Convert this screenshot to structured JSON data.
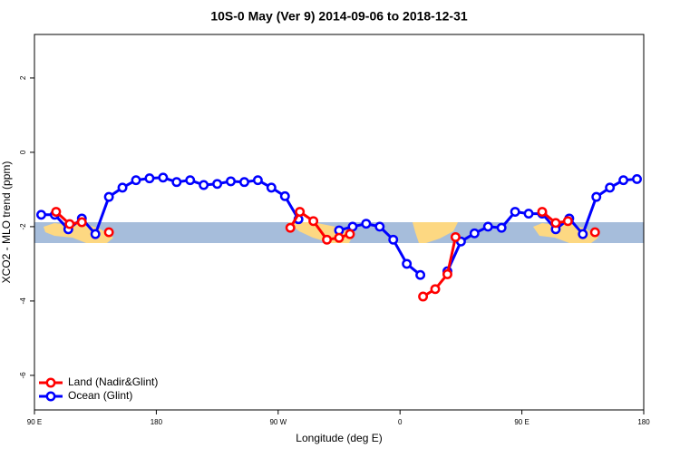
{
  "chart_data": {
    "type": "line",
    "title": "10S-0 May (Ver 9)   2014-09-06 to 2018-12-31",
    "xlabel": "Longitude (deg E)",
    "ylabel": "XCO2 - MLO trend (ppm)",
    "xlim": [
      90,
      540
    ],
    "ylim": [
      -6.93,
      3.17
    ],
    "xticks": [
      {
        "value": 90,
        "label": "90 E"
      },
      180,
      {
        "value": 270,
        "label": "90 W"
      },
      {
        "value": 360,
        "label": "0"
      },
      {
        "value": 450,
        "label": "90 E"
      },
      {
        "value": 540,
        "label": "180"
      }
    ],
    "yticks": [
      2,
      0,
      -2,
      -4,
      -6
    ],
    "legend": "bottom-left",
    "series": [
      {
        "name": "Land (Nadir&Glint)",
        "color": "#ff0000",
        "x": [
          106,
          116,
          125,
          null,
          145,
          null,
          279,
          286,
          296,
          306,
          315,
          323,
          null,
          377,
          386,
          395,
          401,
          null,
          465,
          475,
          484,
          null,
          504
        ],
        "values": [
          -1.6,
          -1.93,
          -1.88,
          null,
          -2.15,
          null,
          -2.03,
          -1.6,
          -1.85,
          -2.35,
          -2.3,
          -2.2,
          null,
          -3.88,
          -3.68,
          -3.28,
          -2.28,
          null,
          -1.6,
          -1.9,
          -1.85,
          null,
          -2.15
        ]
      },
      {
        "name": "Ocean (Glint)",
        "color": "#0000ff",
        "x": [
          95,
          105,
          115,
          125,
          135,
          145,
          155,
          165,
          175,
          185,
          195,
          205,
          215,
          225,
          235,
          245,
          255,
          265,
          275,
          285,
          295,
          305,
          315,
          325,
          335,
          345,
          355,
          365,
          375,
          385,
          395,
          405,
          415,
          425,
          435,
          445,
          455,
          465,
          475,
          485,
          495,
          505,
          515,
          525,
          535
        ],
        "values": [
          -1.68,
          -1.68,
          -2.07,
          -1.78,
          -2.2,
          -1.2,
          -0.95,
          -0.75,
          -0.7,
          -0.68,
          -0.8,
          -0.75,
          -0.88,
          -0.85,
          -0.78,
          -0.8,
          -0.75,
          -0.95,
          -1.18,
          -1.8,
          null,
          null,
          -2.1,
          -2.0,
          -1.92,
          -2.0,
          -2.35,
          -3.0,
          -3.3,
          null,
          -3.2,
          -2.4,
          -2.18,
          -2.0,
          -2.03,
          -1.6,
          -1.65,
          -1.65,
          -2.07,
          -1.78,
          -2.2,
          -1.2,
          -0.95,
          -0.75,
          -0.72
        ]
      }
    ]
  }
}
